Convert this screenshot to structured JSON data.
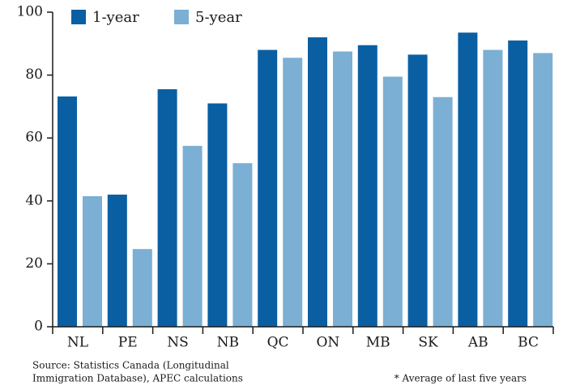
{
  "chart_data": {
    "type": "bar",
    "categories": [
      "NL",
      "PE",
      "NS",
      "NB",
      "QC",
      "ON",
      "MB",
      "SK",
      "AB",
      "BC"
    ],
    "series": [
      {
        "name": "1-year",
        "color": "#0a5fa3",
        "values": [
          73.2,
          42,
          75.5,
          71,
          88,
          92,
          89.5,
          86.5,
          93.5,
          91
        ]
      },
      {
        "name": "5-year",
        "color": "#7bafd4",
        "values": [
          41.5,
          24.7,
          57.5,
          52,
          85.5,
          87.5,
          79.5,
          73,
          88,
          87
        ]
      }
    ],
    "ylim": [
      0,
      100
    ],
    "yticks": [
      0,
      20,
      40,
      60,
      80,
      100
    ],
    "source": [
      "Source: Statistics Canada (Longitudinal",
      "Immigration Database), APEC calculations"
    ],
    "footnote": "* Average of last five years",
    "legend": "top-left"
  }
}
